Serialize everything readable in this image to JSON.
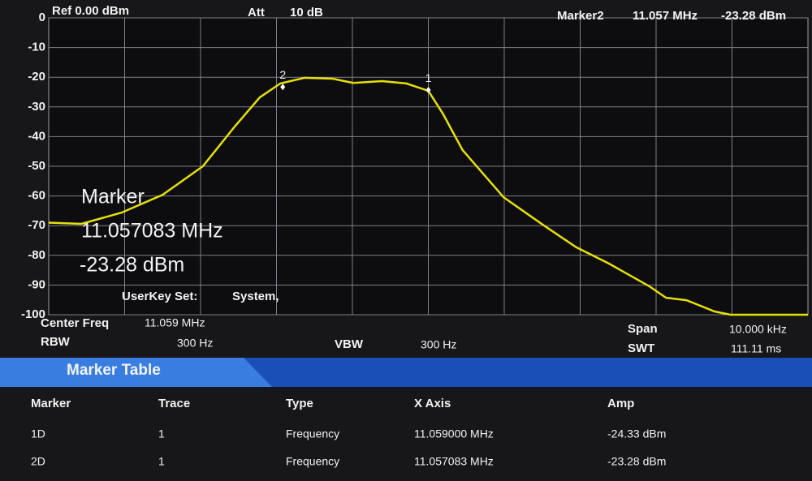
{
  "header": {
    "ref": "Ref 0.00 dBm",
    "att_label": "Att",
    "att_value": "10 dB",
    "marker_label": "Marker2",
    "marker_freq": "11.057 MHz",
    "marker_amp": "-23.28 dBm"
  },
  "chart_data": {
    "type": "line",
    "x": [
      11.054,
      11.05443,
      11.05496,
      11.0555,
      11.05603,
      11.05646,
      11.05678,
      11.05705,
      11.05737,
      11.05774,
      11.05801,
      11.05839,
      11.05871,
      11.059,
      11.05919,
      11.05945,
      11.05999,
      11.06052,
      11.06095,
      11.06138,
      11.06191,
      11.06213,
      11.0624,
      11.06277,
      11.06298,
      11.064
    ],
    "series": [
      {
        "color": "#e6df0a",
        "values": [
          -69,
          -69.4,
          -65.6,
          -59.6,
          -50,
          -36.3,
          -26.8,
          -22.1,
          -20.2,
          -20.5,
          -21.9,
          -21.3,
          -22.1,
          -24.6,
          -32.2,
          -44.5,
          -60.4,
          -69.9,
          -77.3,
          -82.8,
          -90.4,
          -94.3,
          -95.1,
          -98.9,
          -100,
          -100
        ]
      }
    ],
    "xlim": [
      11.054,
      11.064
    ],
    "ylim": [
      -100,
      0
    ],
    "yticks": [
      0,
      -10,
      -20,
      -30,
      -40,
      -50,
      -60,
      -70,
      -80,
      -90,
      -100
    ],
    "grid": true,
    "markers": [
      {
        "label": "2",
        "x": 11.057083,
        "y": -23.28
      },
      {
        "label": "1",
        "x": 11.059,
        "y": -24.33
      }
    ],
    "annotations": [
      "Marker",
      "11.057083 MHz",
      "-23.28 dBm",
      "UserKey Set:",
      "System,"
    ]
  },
  "footer": {
    "center_label": "Center Freq",
    "center_value": "11.059 MHz",
    "rbw_label": "RBW",
    "rbw_value": "300 Hz",
    "vbw_label": "VBW",
    "vbw_value": "300 Hz",
    "span_label": "Span",
    "span_value": "10.000 kHz",
    "swt_label": "SWT",
    "swt_value": "111.11 ms"
  },
  "table": {
    "title": "Marker Table",
    "columns": [
      "Marker",
      "Trace",
      "Type",
      "X Axis",
      "Amp"
    ],
    "rows": [
      [
        "1D",
        "1",
        "Frequency",
        "11.059000 MHz",
        "-24.33 dBm"
      ],
      [
        "2D",
        "1",
        "Frequency",
        "11.057083 MHz",
        "-23.28 dBm"
      ]
    ]
  }
}
